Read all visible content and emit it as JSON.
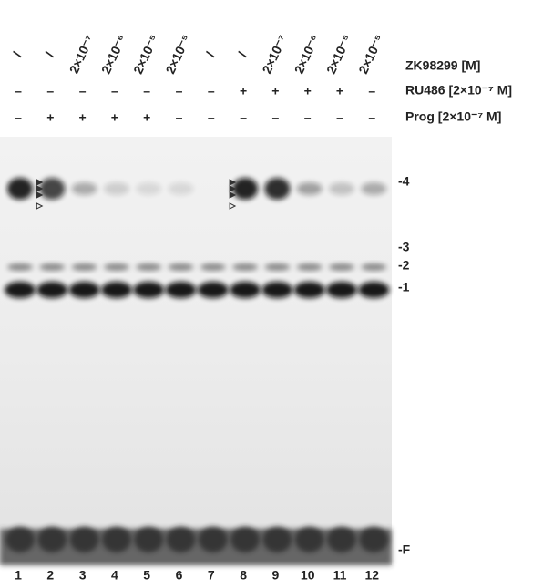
{
  "lanes": {
    "zk98299": [
      "/",
      "/",
      "2×10⁻⁷",
      "2×10⁻⁶",
      "2×10⁻⁵",
      "2×10⁻⁵",
      "/",
      "/",
      "2×10⁻⁷",
      "2×10⁻⁶",
      "2×10⁻⁵",
      "2×10⁻⁵"
    ],
    "ru486": [
      "–",
      "–",
      "–",
      "–",
      "–",
      "–",
      "–",
      "+",
      "+",
      "+",
      "+",
      "–"
    ],
    "prog": [
      "–",
      "+",
      "+",
      "+",
      "+",
      "–",
      "–",
      "–",
      "–",
      "–",
      "–",
      "–"
    ],
    "numbers": [
      "1",
      "2",
      "3",
      "4",
      "5",
      "6",
      "7",
      "8",
      "9",
      "10",
      "11",
      "12"
    ]
  },
  "row_labels": [
    "ZK98299 [M]",
    "RU486 [2×10⁻⁷ M]",
    "Prog [2×10⁻⁷ M]"
  ],
  "band_labels": [
    "-4",
    "-3",
    "-2",
    "-1",
    "-F"
  ]
}
